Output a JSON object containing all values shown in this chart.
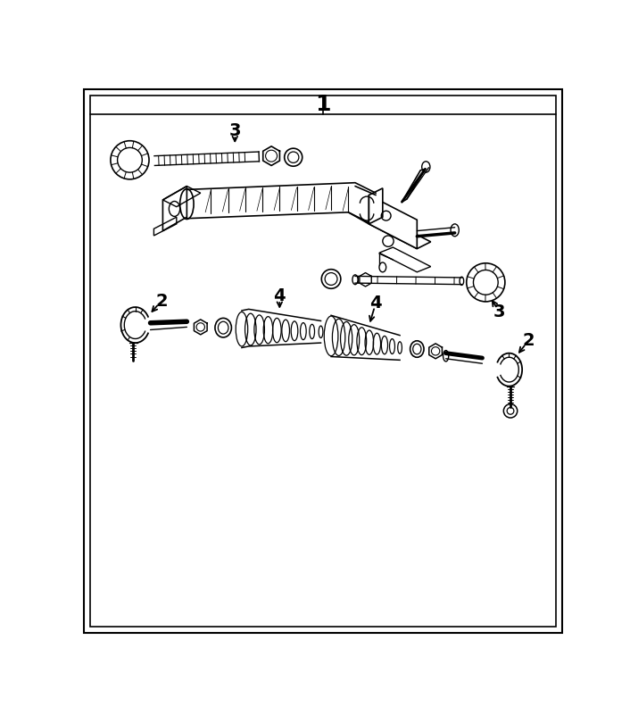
{
  "title_number": "1",
  "background_color": "#ffffff",
  "line_color": "#000000",
  "font_size_labels": 14,
  "font_size_title": 18,
  "fig_width": 7.06,
  "fig_height": 8.01,
  "dpi": 100
}
